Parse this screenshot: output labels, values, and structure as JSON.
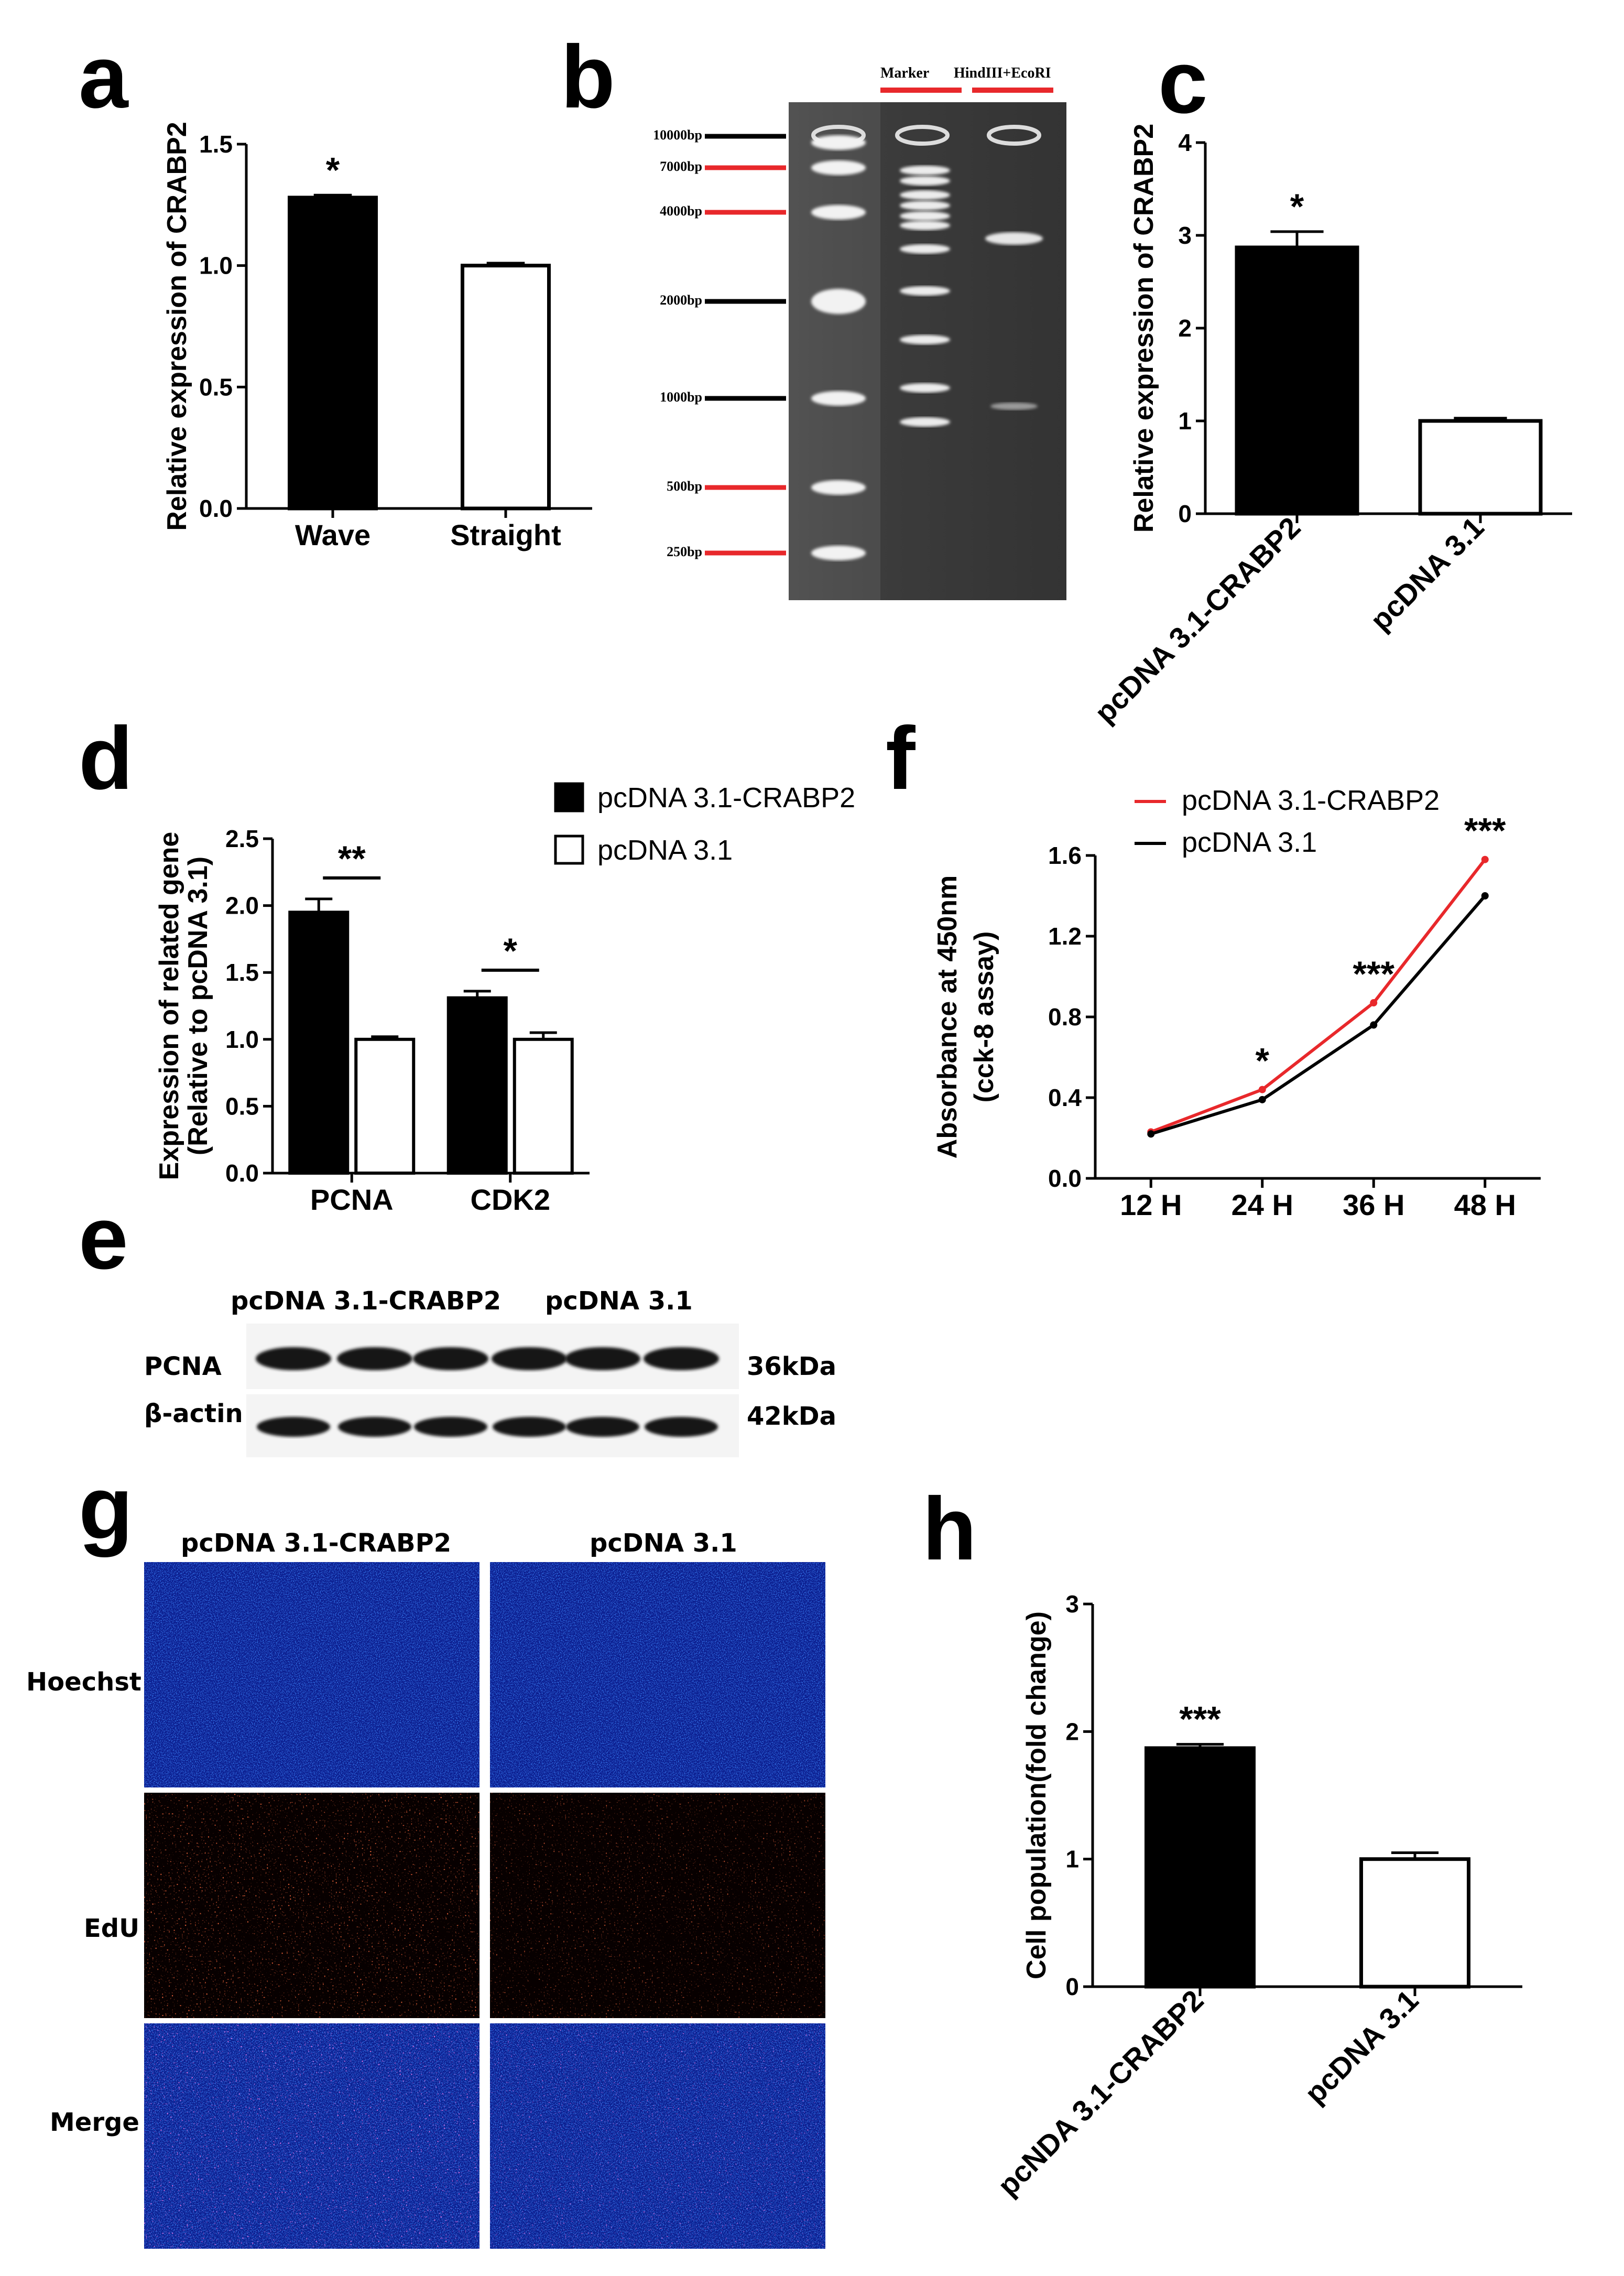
{
  "panels": {
    "a": "a",
    "b": "b",
    "c": "c",
    "d": "d",
    "e": "e",
    "f": "f",
    "g": "g",
    "h": "h"
  },
  "chart_data": [
    {
      "panel": "a",
      "type": "bar",
      "categories": [
        "Wave",
        "Straight"
      ],
      "values": [
        1.28,
        1.0
      ],
      "errors": [
        0.01,
        0.01
      ],
      "fills": [
        "#000000",
        "#ffffff"
      ],
      "significance": [
        "*",
        ""
      ],
      "ylabel": "Relative expression of CRABP2",
      "ylim": [
        0,
        1.5
      ],
      "yticks": [
        "0.0",
        "0.5",
        "1.0",
        "1.5"
      ]
    },
    {
      "panel": "c",
      "type": "bar",
      "categories": [
        "pcDNA 3.1-CRABP2",
        "pcDNA 3.1"
      ],
      "values": [
        2.87,
        1.0
      ],
      "errors": [
        0.17,
        0.03
      ],
      "fills": [
        "#000000",
        "#ffffff"
      ],
      "significance": [
        "*",
        ""
      ],
      "ylabel": "Relative expression of CRABP2",
      "ylim": [
        0,
        4
      ],
      "yticks": [
        "0",
        "1",
        "2",
        "3",
        "4"
      ]
    },
    {
      "panel": "d",
      "type": "bar",
      "categories": [
        "PCNA",
        "CDK2"
      ],
      "series": [
        {
          "name": "pcDNA 3.1-CRABP2",
          "values": [
            1.95,
            1.31
          ],
          "errors": [
            0.1,
            0.05
          ],
          "fill": "#000000"
        },
        {
          "name": "pcDNA 3.1",
          "values": [
            1.0,
            1.0
          ],
          "errors": [
            0.02,
            0.05
          ],
          "fill": "#ffffff"
        }
      ],
      "significance": [
        "**",
        "*"
      ],
      "ylabel": "Expression of related gene",
      "ylabel2": "(Relative to pcDNA 3.1)",
      "ylim": [
        0,
        2.5
      ],
      "yticks": [
        "0.0",
        "0.5",
        "1.0",
        "1.5",
        "2.0",
        "2.5"
      ],
      "legend": "top-right"
    },
    {
      "panel": "f",
      "type": "line",
      "categories": [
        "12 H",
        "24 H",
        "36 H",
        "48 H"
      ],
      "series": [
        {
          "name": "pcDNA 3.1-CRABP2",
          "values": [
            0.23,
            0.44,
            0.87,
            1.58
          ],
          "color": "#e8282b"
        },
        {
          "name": "pcDNA 3.1",
          "values": [
            0.22,
            0.39,
            0.76,
            1.4
          ],
          "color": "#000000"
        }
      ],
      "significance": [
        "",
        "*",
        "***",
        "***"
      ],
      "ylabel": "Absorbance at 450nm",
      "ylabel2": "(cck-8 assay)",
      "ylim": [
        0,
        1.6
      ],
      "yticks": [
        "0.0",
        "0.4",
        "0.8",
        "1.2",
        "1.6"
      ],
      "legend": "top-left"
    },
    {
      "panel": "h",
      "type": "bar",
      "categories": [
        "pcNDA 3.1-CRABP2",
        "pcDNA 3.1"
      ],
      "values": [
        1.87,
        1.0
      ],
      "errors": [
        0.03,
        0.05
      ],
      "fills": [
        "#000000",
        "#ffffff"
      ],
      "significance": [
        "***",
        ""
      ],
      "ylabel": "Cell population(fold change)",
      "ylim": [
        0,
        3
      ],
      "yticks": [
        "0",
        "1",
        "2",
        "3"
      ]
    }
  ],
  "gel": {
    "headers": [
      "Marker",
      "HindIII+EcoRI"
    ],
    "header_color": "#e8282b",
    "markers": [
      {
        "label": "10000bp",
        "color": "#000000"
      },
      {
        "label": "7000bp",
        "color": "#e8282b"
      },
      {
        "label": "4000bp",
        "color": "#e8282b"
      },
      {
        "label": "2000bp",
        "color": "#000000"
      },
      {
        "label": "1000bp",
        "color": "#000000"
      },
      {
        "label": "500bp",
        "color": "#e8282b"
      },
      {
        "label": "250bp",
        "color": "#e8282b"
      }
    ]
  },
  "western": {
    "groups": [
      "pcDNA 3.1-CRABP2",
      "pcDNA 3.1"
    ],
    "rows": [
      {
        "label": "PCNA",
        "size": "36kDa"
      },
      {
        "label": "β-actin",
        "size": "42kDa"
      }
    ]
  },
  "imaging": {
    "columns": [
      "pcDNA 3.1-CRABP2",
      "pcDNA 3.1"
    ],
    "rows": [
      "Hoechst",
      "EdU",
      "Merge"
    ]
  }
}
